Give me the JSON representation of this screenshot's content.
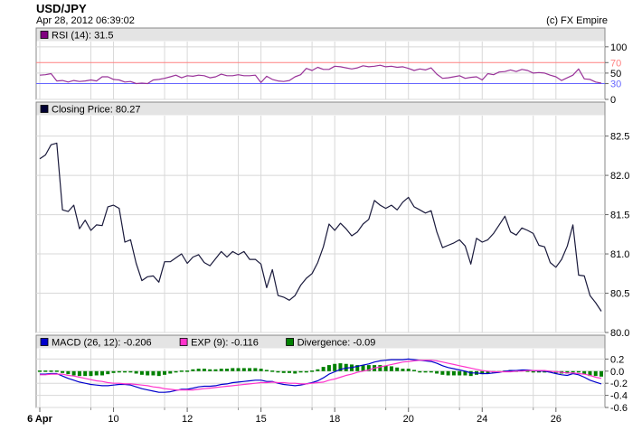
{
  "header": {
    "title": "USD/JPY",
    "timestamp": "Apr 28, 2012 06:39:02",
    "copyright": "(c) FX Empire"
  },
  "colors": {
    "grid": "#d8d8d8",
    "rsi_line": "#993399",
    "rsi_upper": "#ff8080",
    "rsi_lower": "#6666ff",
    "price_line": "#1a1a3c",
    "macd_line": "#0000cc",
    "exp_line": "#ff33cc",
    "divergence_bar": "#008000",
    "legend_bar": "#e4e4e4"
  },
  "chart_data": [
    {
      "type": "line",
      "panel": "rsi",
      "legend": [
        {
          "label": "RSI (14): 31.5",
          "color": "#800080"
        }
      ],
      "y_ticks": [
        "100",
        "70",
        "50",
        "30",
        "0"
      ],
      "y_tick_values": [
        100,
        70,
        50,
        30,
        0
      ],
      "ylim": [
        0,
        110
      ],
      "reference_lines": [
        70,
        30
      ],
      "series": [
        {
          "values": [
            46,
            47,
            49,
            35,
            36,
            33,
            36,
            34,
            35,
            37,
            35,
            43,
            43,
            38,
            37,
            33,
            34,
            30,
            31,
            30,
            37,
            38,
            40,
            43,
            46,
            41,
            45,
            44,
            46,
            45,
            41,
            43,
            48,
            45,
            45,
            47,
            45,
            45,
            46,
            32,
            44,
            38,
            35,
            34,
            36,
            43,
            47,
            59,
            55,
            61,
            57,
            57,
            63,
            62,
            60,
            58,
            60,
            64,
            62,
            63,
            65,
            62,
            63,
            61,
            62,
            59,
            55,
            58,
            56,
            60,
            48,
            40,
            41,
            43,
            45,
            40,
            42,
            43,
            37,
            49,
            47,
            52,
            53,
            56,
            53,
            57,
            55,
            50,
            51,
            50,
            46,
            43,
            36,
            41,
            46,
            58,
            39,
            38,
            33,
            31
          ]
        }
      ]
    },
    {
      "type": "line",
      "panel": "price",
      "legend": [
        {
          "label": "Closing Price: 80.27",
          "color": "#000033"
        }
      ],
      "y_ticks": [
        "82.5",
        "82.0",
        "81.5",
        "81.0",
        "80.5",
        "80.0"
      ],
      "y_tick_values": [
        82.5,
        82.0,
        81.5,
        81.0,
        80.5,
        80.0
      ],
      "ylim": [
        80.0,
        82.76
      ],
      "series": [
        {
          "values": [
            82.21,
            82.26,
            82.39,
            82.41,
            81.56,
            81.54,
            81.62,
            81.32,
            81.43,
            81.3,
            81.37,
            81.36,
            81.6,
            81.62,
            81.58,
            81.15,
            81.18,
            80.88,
            80.66,
            80.71,
            80.72,
            80.64,
            80.9,
            80.9,
            80.95,
            81.0,
            80.88,
            80.96,
            80.99,
            80.89,
            80.85,
            80.94,
            81.03,
            80.96,
            81.03,
            80.99,
            81.03,
            80.93,
            80.93,
            80.87,
            80.57,
            80.8,
            80.47,
            80.45,
            80.41,
            80.47,
            80.6,
            80.69,
            80.75,
            80.89,
            81.09,
            81.38,
            81.3,
            81.39,
            81.32,
            81.23,
            81.28,
            81.38,
            81.44,
            81.68,
            81.62,
            81.58,
            81.62,
            81.56,
            81.66,
            81.72,
            81.6,
            81.56,
            81.52,
            81.55,
            81.28,
            81.08,
            81.11,
            81.14,
            81.18,
            81.1,
            80.87,
            81.2,
            81.15,
            81.18,
            81.26,
            81.37,
            81.48,
            81.28,
            81.24,
            81.33,
            81.3,
            81.26,
            81.11,
            81.09,
            80.89,
            80.83,
            80.93,
            81.1,
            81.37,
            80.73,
            80.72,
            80.47,
            80.38,
            80.27
          ]
        }
      ]
    },
    {
      "type": "line",
      "panel": "macd",
      "legend": [
        {
          "label": "MACD (26, 12): -0.206",
          "color": "#0000cc"
        },
        {
          "label": "EXP (9): -0.116",
          "color": "#ff33cc"
        },
        {
          "label": "Divergence: -0.09",
          "color": "#008000"
        }
      ],
      "y_ticks": [
        "0.2",
        "0.0",
        "-0.2",
        "-0.4",
        "-0.6"
      ],
      "y_tick_values": [
        0.2,
        0.0,
        -0.2,
        -0.4,
        -0.6
      ],
      "ylim": [
        -0.6,
        0.37
      ],
      "x_ticks": [
        {
          "label": "6 Apr",
          "index": 0,
          "bold": true
        },
        {
          "label": "10",
          "index": 13
        },
        {
          "label": "12",
          "index": 26
        },
        {
          "label": "15",
          "index": 39
        },
        {
          "label": "18",
          "index": 52
        },
        {
          "label": "20",
          "index": 65
        },
        {
          "label": "24",
          "index": 78
        },
        {
          "label": "26",
          "index": 91
        }
      ],
      "minor_x_index": [
        9,
        22,
        35,
        48,
        61,
        74,
        87
      ],
      "series": [
        {
          "name": "MACD (26, 12)",
          "key": "macd",
          "values": [
            -0.05,
            -0.05,
            -0.04,
            -0.04,
            -0.08,
            -0.12,
            -0.15,
            -0.18,
            -0.2,
            -0.22,
            -0.23,
            -0.24,
            -0.24,
            -0.23,
            -0.22,
            -0.22,
            -0.23,
            -0.26,
            -0.29,
            -0.31,
            -0.33,
            -0.35,
            -0.35,
            -0.34,
            -0.32,
            -0.3,
            -0.3,
            -0.28,
            -0.26,
            -0.25,
            -0.25,
            -0.24,
            -0.22,
            -0.21,
            -0.19,
            -0.18,
            -0.17,
            -0.16,
            -0.15,
            -0.15,
            -0.17,
            -0.17,
            -0.2,
            -0.22,
            -0.23,
            -0.24,
            -0.23,
            -0.21,
            -0.19,
            -0.16,
            -0.11,
            -0.05,
            -0.01,
            0.03,
            0.05,
            0.06,
            0.08,
            0.1,
            0.12,
            0.15,
            0.17,
            0.18,
            0.19,
            0.19,
            0.19,
            0.2,
            0.19,
            0.18,
            0.17,
            0.16,
            0.13,
            0.09,
            0.06,
            0.04,
            0.02,
            0.0,
            -0.03,
            -0.03,
            -0.04,
            -0.04,
            -0.03,
            -0.02,
            0.0,
            0.01,
            0.01,
            0.02,
            0.02,
            0.01,
            0.0,
            0.0,
            -0.02,
            -0.04,
            -0.06,
            -0.07,
            -0.04,
            -0.06,
            -0.1,
            -0.15,
            -0.18,
            -0.21
          ]
        },
        {
          "name": "EXP (9)",
          "key": "exp",
          "values": [
            -0.06,
            -0.06,
            -0.05,
            -0.05,
            -0.05,
            -0.07,
            -0.08,
            -0.1,
            -0.12,
            -0.14,
            -0.16,
            -0.17,
            -0.19,
            -0.2,
            -0.2,
            -0.21,
            -0.21,
            -0.22,
            -0.23,
            -0.24,
            -0.26,
            -0.27,
            -0.29,
            -0.3,
            -0.31,
            -0.31,
            -0.31,
            -0.31,
            -0.3,
            -0.29,
            -0.28,
            -0.27,
            -0.26,
            -0.25,
            -0.24,
            -0.23,
            -0.22,
            -0.21,
            -0.2,
            -0.19,
            -0.19,
            -0.18,
            -0.19,
            -0.19,
            -0.2,
            -0.2,
            -0.21,
            -0.21,
            -0.2,
            -0.19,
            -0.18,
            -0.15,
            -0.13,
            -0.1,
            -0.07,
            -0.05,
            -0.02,
            0.0,
            0.02,
            0.05,
            0.07,
            0.09,
            0.11,
            0.13,
            0.15,
            0.16,
            0.17,
            0.18,
            0.18,
            0.18,
            0.17,
            0.15,
            0.13,
            0.11,
            0.09,
            0.07,
            0.05,
            0.03,
            0.01,
            0.0,
            -0.01,
            -0.01,
            -0.01,
            -0.01,
            0.0,
            0.0,
            0.01,
            0.01,
            0.01,
            0.01,
            0.0,
            -0.01,
            -0.02,
            -0.03,
            -0.03,
            -0.04,
            -0.05,
            -0.07,
            -0.1,
            -0.12
          ]
        }
      ]
    }
  ]
}
